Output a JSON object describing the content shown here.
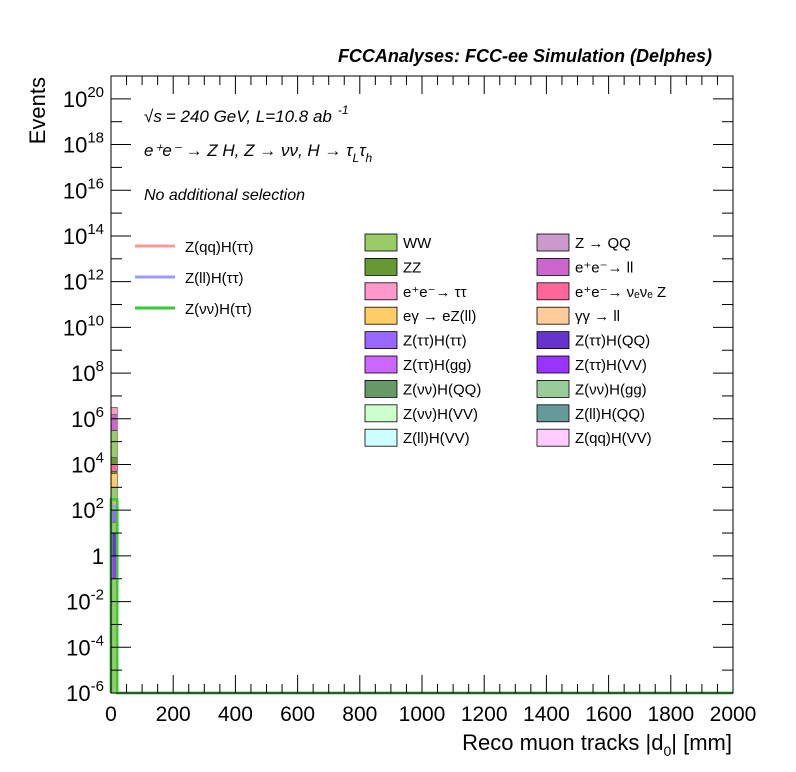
{
  "header": {
    "title": "FCCAnalyses: FCC-ee Simulation (Delphes)"
  },
  "annotations": {
    "energy_sqrt": "√s",
    "energy_rest": "= 240 GeV, L=10.8 ab",
    "lumi_exp": "-1",
    "process": "e⁺e⁻ → Z H, Z → νν, H → τ",
    "process_sub1": "L",
    "process_tau": "τ",
    "process_sub2": "h",
    "selection": "No additional selection"
  },
  "chart_data": {
    "type": "bar",
    "title": "FCCAnalyses: FCC-ee Simulation (Delphes)",
    "xlabel": "Reco muon tracks |d0| [mm]",
    "xlabel_main": "Reco muon tracks |d",
    "xlabel_sub": "0",
    "xlabel_tail": "| [mm]",
    "ylabel": "Events",
    "xlim": [
      0,
      2000
    ],
    "ylim": [
      1e-06,
      1e+21
    ],
    "yscale": "log",
    "x_ticks": [
      "0",
      "200",
      "400",
      "600",
      "800",
      "1000",
      "1200",
      "1400",
      "1600",
      "1800",
      "2000"
    ],
    "x_tick_values": [
      0,
      200,
      400,
      600,
      800,
      1000,
      1200,
      1400,
      1600,
      1800,
      2000
    ],
    "y_ticks": [
      {
        "base": "10",
        "exp": "20",
        "value": 1e+20
      },
      {
        "base": "10",
        "exp": "18",
        "value": 1e+18
      },
      {
        "base": "10",
        "exp": "16",
        "value": 1e+16
      },
      {
        "base": "10",
        "exp": "14",
        "value": 100000000000000.0
      },
      {
        "base": "10",
        "exp": "12",
        "value": 1000000000000.0
      },
      {
        "base": "10",
        "exp": "10",
        "value": 10000000000.0
      },
      {
        "base": "10",
        "exp": "8",
        "value": 100000000.0
      },
      {
        "base": "10",
        "exp": "6",
        "value": 1000000.0
      },
      {
        "base": "10",
        "exp": "4",
        "value": 10000.0
      },
      {
        "base": "10",
        "exp": "2",
        "value": 100.0
      },
      {
        "base": "1",
        "exp": "",
        "value": 1
      },
      {
        "base": "10",
        "exp": "-2",
        "value": 0.01
      },
      {
        "base": "10",
        "exp": "-4",
        "value": 0.0001
      },
      {
        "base": "10",
        "exp": "-6",
        "value": 1e-06
      }
    ],
    "stack_bins": [
      {
        "x0": 0,
        "x1": 20,
        "segments": [
          {
            "name": "WW",
            "lo": 1e-06,
            "hi": 300000.0
          },
          {
            "name": "e⁺e⁻→ ll",
            "lo": 300000.0,
            "hi": 1500000.0
          },
          {
            "name": "e⁺e⁻→ ττ",
            "lo": 1500000.0,
            "hi": 3200000.0
          },
          {
            "name": "ZZ",
            "lo": 2000.0,
            "hi": 20000.0
          },
          {
            "name": "eγ → eZ(ll)",
            "lo": 1000.0,
            "hi": 4000.0
          },
          {
            "name": "e⁺e⁻→ νₑνₑ Z",
            "lo": 5000.0,
            "hi": 10000.0
          },
          {
            "name": "Z(ττ)H(ττ)",
            "lo": 30,
            "hi": 100
          },
          {
            "name": "Z(ττ)H(QQ)",
            "lo": 1,
            "hi": 10
          },
          {
            "name": "Z(ττ)H(VV)",
            "lo": 0.1,
            "hi": 1
          }
        ]
      }
    ],
    "signal_lines": [
      {
        "name": "Z(qq)H(ττ)",
        "color": "#ff9999",
        "bins": [
          {
            "x0": 0,
            "x1": 20,
            "value": 200
          }
        ]
      },
      {
        "name": "Z(ll)H(ττ)",
        "color": "#9999ff",
        "bins": [
          {
            "x0": 0,
            "x1": 20,
            "value": 150
          }
        ]
      },
      {
        "name": "Z(νν)H(ττ)",
        "color": "#33cc33",
        "bins": [
          {
            "x0": 0,
            "x1": 20,
            "value": 300
          }
        ]
      }
    ],
    "legend_lines": [
      {
        "name": "Z(qq)H(ττ)",
        "color": "#ff9999"
      },
      {
        "name": "Z(ll)H(ττ)",
        "color": "#9999ff"
      },
      {
        "name": "Z(νν)H(ττ)",
        "color": "#33cc33"
      }
    ],
    "legend_boxes": [
      {
        "name": "WW",
        "color": "#99cc66"
      },
      {
        "name": "Z → QQ",
        "color": "#cc99cc"
      },
      {
        "name": "ZZ",
        "color": "#669933"
      },
      {
        "name": "e⁺e⁻→ ll",
        "color": "#cc66cc"
      },
      {
        "name": "e⁺e⁻→ ττ",
        "color": "#ff99cc"
      },
      {
        "name": "e⁺e⁻→ νₑνₑ Z",
        "color": "#ff6699"
      },
      {
        "name": "eγ → eZ(ll)",
        "color": "#ffcc66"
      },
      {
        "name": "γγ → ll",
        "color": "#ffcc99"
      },
      {
        "name": "Z(ττ)H(ττ)",
        "color": "#9966ff"
      },
      {
        "name": "Z(ττ)H(QQ)",
        "color": "#6633cc"
      },
      {
        "name": "Z(ττ)H(gg)",
        "color": "#cc66ff"
      },
      {
        "name": "Z(ττ)H(VV)",
        "color": "#9933ff"
      },
      {
        "name": "Z(νν)H(QQ)",
        "color": "#669966"
      },
      {
        "name": "Z(νν)H(gg)",
        "color": "#99cc99"
      },
      {
        "name": "Z(νν)H(VV)",
        "color": "#ccffcc"
      },
      {
        "name": "Z(ll)H(QQ)",
        "color": "#669999"
      },
      {
        "name": "Z(ll)H(VV)",
        "color": "#ccffff"
      },
      {
        "name": "Z(qq)H(VV)",
        "color": "#ffccff"
      }
    ],
    "grid": false,
    "legend_position": "top-center"
  }
}
